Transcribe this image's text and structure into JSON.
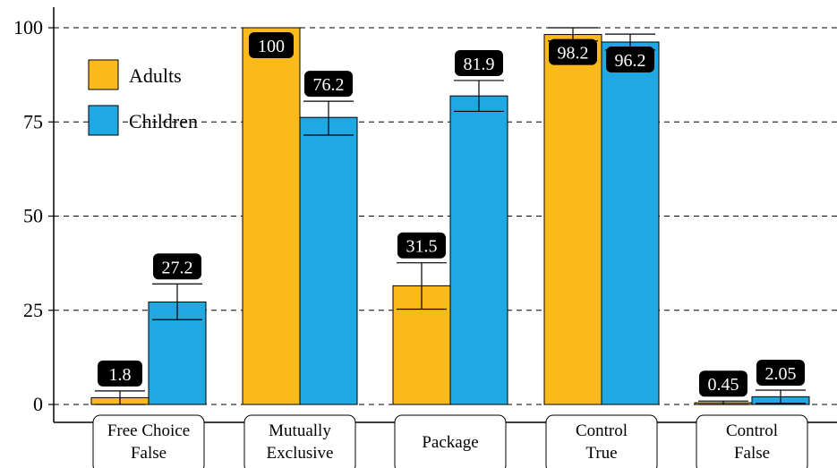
{
  "chart_data": {
    "type": "bar",
    "categories": [
      [
        "Free Choice",
        "False"
      ],
      [
        "Mutually",
        "Exclusive"
      ],
      [
        "Package"
      ],
      [
        "Control",
        "True"
      ],
      [
        "Control",
        "False"
      ]
    ],
    "series": [
      {
        "name": "Adults",
        "color": "#FBBA1B",
        "values": [
          1.8,
          100,
          31.5,
          98.2,
          0.45
        ],
        "labels": [
          "1.8",
          "100",
          "31.5",
          "98.2",
          "0.45"
        ],
        "error_low": [
          0,
          100,
          25.3,
          96.5,
          0
        ],
        "error_high": [
          3.6,
          100,
          37.6,
          100,
          0.9
        ]
      },
      {
        "name": "Children",
        "color": "#1FA8E1",
        "values": [
          27.2,
          76.2,
          81.9,
          96.2,
          2.05
        ],
        "labels": [
          "27.2",
          "76.2",
          "81.9",
          "96.2",
          "2.05"
        ],
        "error_low": [
          22.5,
          71.5,
          77.8,
          94.1,
          0.3
        ],
        "error_high": [
          32.0,
          80.5,
          86.0,
          98.3,
          3.8
        ]
      }
    ],
    "y_ticks": [
      "0",
      "25",
      "50",
      "75",
      "100"
    ],
    "ylim": [
      0,
      100
    ],
    "grid": "horizontal dashed",
    "legend": "top-left",
    "title": "",
    "xlabel": "",
    "ylabel": ""
  }
}
